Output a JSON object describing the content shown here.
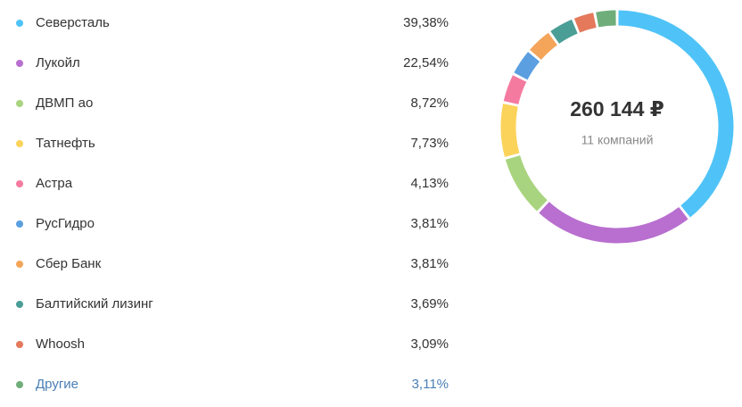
{
  "chart_data": {
    "type": "pie",
    "center_title": "260 144 ₽",
    "center_subtitle": "11 компаний",
    "categories": [
      "Северсталь",
      "Лукойл",
      "ДВМП ао",
      "Татнефть",
      "Астра",
      "РусГидро",
      "Сбер Банк",
      "Балтийский лизинг",
      "Whoosh",
      "Другие"
    ],
    "values": [
      39.38,
      22.54,
      8.72,
      7.73,
      4.13,
      3.81,
      3.81,
      3.69,
      3.09,
      3.11
    ],
    "value_labels": [
      "39,38%",
      "22,54%",
      "8,72%",
      "7,73%",
      "4,13%",
      "3,81%",
      "3,81%",
      "3,69%",
      "3,09%",
      "3,11%"
    ],
    "colors": [
      "#4fc3f7",
      "#b86fcf",
      "#a9d47f",
      "#fcd35a",
      "#f57aa0",
      "#5b9fe0",
      "#f4a55a",
      "#4a9e96",
      "#e5795c",
      "#6fae7a"
    ]
  }
}
